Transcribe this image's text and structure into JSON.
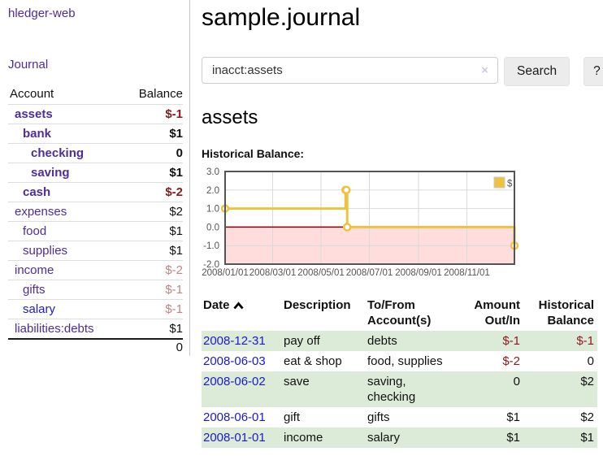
{
  "sidebar": {
    "brand": "hledger-web",
    "journal_link": "Journal",
    "accounts": {
      "header_account": "Account",
      "header_balance": "Balance",
      "rows": [
        {
          "name": "assets",
          "balance": "$-1"
        },
        {
          "name": "bank",
          "balance": "$1"
        },
        {
          "name": "checking",
          "balance": "0"
        },
        {
          "name": "saving",
          "balance": "$1"
        },
        {
          "name": "cash",
          "balance": "$-2"
        },
        {
          "name": "expenses",
          "balance": "$2"
        },
        {
          "name": "food",
          "balance": "$1"
        },
        {
          "name": "supplies",
          "balance": "$1"
        },
        {
          "name": "income",
          "balance": "$-2"
        },
        {
          "name": "gifts",
          "balance": "$-1"
        },
        {
          "name": "salary",
          "balance": "$-1"
        },
        {
          "name": "liabilities:debts",
          "balance": "$1"
        }
      ],
      "total": "0"
    }
  },
  "main": {
    "title": "sample.journal",
    "search": {
      "value": "inacct:assets",
      "clear_icon": "×",
      "button_label": "Search",
      "help_label": "?"
    },
    "account_heading": "assets",
    "chart_label": "Historical Balance:",
    "register": {
      "headers": [
        "Date",
        "Description",
        "To/From Account(s)",
        "Amount Out/In",
        "Historical Balance"
      ],
      "rows": [
        {
          "date": "2008-12-31",
          "description": "pay off",
          "accounts": "debts",
          "amount": "$-1",
          "balance": "$-1"
        },
        {
          "date": "2008-06-03",
          "description": "eat & shop",
          "accounts": "food, supplies",
          "amount": "$-2",
          "balance": "0"
        },
        {
          "date": "2008-06-02",
          "description": "save",
          "accounts": "saving, checking",
          "amount": "0",
          "balance": "$2"
        },
        {
          "date": "2008-06-01",
          "description": "gift",
          "accounts": "gifts",
          "amount": "$1",
          "balance": "$2"
        },
        {
          "date": "2008-01-01",
          "description": "income",
          "accounts": "salary",
          "amount": "$1",
          "balance": "$1"
        }
      ]
    }
  },
  "chart_data": {
    "type": "line",
    "style": "step",
    "title": "Historical Balance",
    "series": [
      {
        "name": "$",
        "color": "#EDC240",
        "points": [
          [
            "2008-01-01",
            1
          ],
          [
            "2008-06-01",
            2
          ],
          [
            "2008-06-02",
            2
          ],
          [
            "2008-06-03",
            0
          ],
          [
            "2008-12-31",
            -1
          ]
        ]
      }
    ],
    "x_ticks": [
      "2008/01/01",
      "2008/03/01",
      "2008/05/01",
      "2008/07/01",
      "2008/09/01",
      "2008/11/01"
    ],
    "y_ticks": [
      3.0,
      2.0,
      1.0,
      0.0,
      -1.0,
      -2.0
    ],
    "ylim": [
      -2,
      3
    ],
    "xlim": [
      "2008-01-01",
      "2008-12-31"
    ],
    "grid": true,
    "legend": [
      "$"
    ],
    "legend_position": "top-right"
  },
  "colors": {
    "link_purple": "#4f2b9e",
    "link_blue": "#1a1acd",
    "negative_strong": "#8b1a1a",
    "negative_soft": "#c48383",
    "row_green": "#dcead8",
    "chart_gold": "#EDC240",
    "chart_negative_region": "#ffdddd",
    "chart_zero_line": "#800000",
    "chart_border": "#545454"
  }
}
